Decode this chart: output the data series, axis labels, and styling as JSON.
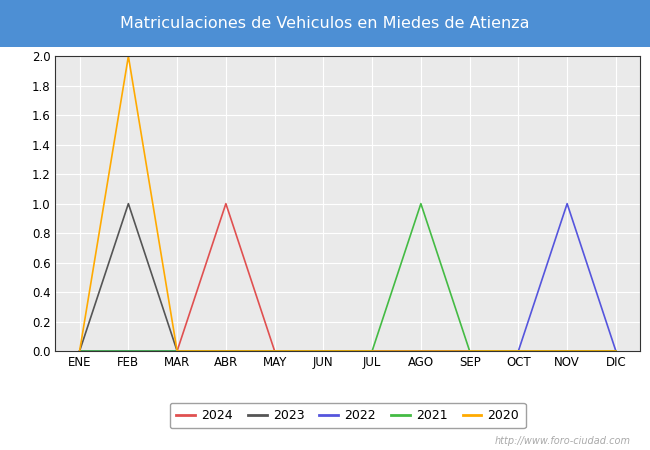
{
  "title": "Matriculaciones de Vehiculos en Miedes de Atienza",
  "title_color": "#ffffff",
  "title_bg_color": "#4d8fd4",
  "months": [
    "ENE",
    "FEB",
    "MAR",
    "ABR",
    "MAY",
    "JUN",
    "JUL",
    "AGO",
    "SEP",
    "OCT",
    "NOV",
    "DIC"
  ],
  "series": {
    "2024": {
      "values": [
        0,
        0,
        0,
        1,
        0,
        null,
        null,
        null,
        null,
        null,
        null,
        null
      ],
      "color": "#e05050",
      "linewidth": 1.2
    },
    "2023": {
      "values": [
        0,
        1,
        0,
        0,
        0,
        0,
        0,
        0,
        0,
        0,
        0,
        0
      ],
      "color": "#555555",
      "linewidth": 1.2
    },
    "2022": {
      "values": [
        0,
        0,
        0,
        0,
        0,
        0,
        0,
        0,
        0,
        0,
        1,
        0
      ],
      "color": "#5555dd",
      "linewidth": 1.2
    },
    "2021": {
      "values": [
        0,
        0,
        0,
        0,
        0,
        0,
        0,
        1,
        0,
        0,
        0,
        0
      ],
      "color": "#44bb44",
      "linewidth": 1.2
    },
    "2020": {
      "values": [
        0,
        2,
        0,
        0,
        0,
        0,
        0,
        0,
        0,
        0,
        0,
        0
      ],
      "color": "#ffaa00",
      "linewidth": 1.2
    }
  },
  "legend_order": [
    "2024",
    "2023",
    "2022",
    "2021",
    "2020"
  ],
  "ylim": [
    0,
    2.0
  ],
  "yticks": [
    0.0,
    0.2,
    0.4,
    0.6,
    0.8,
    1.0,
    1.2,
    1.4,
    1.6,
    1.8,
    2.0
  ],
  "plot_bg_color": "#eaeaea",
  "grid_color": "#ffffff",
  "fig_bg_color": "#ffffff",
  "watermark": "http://www.foro-ciudad.com",
  "figsize": [
    6.5,
    4.5
  ],
  "dpi": 100
}
